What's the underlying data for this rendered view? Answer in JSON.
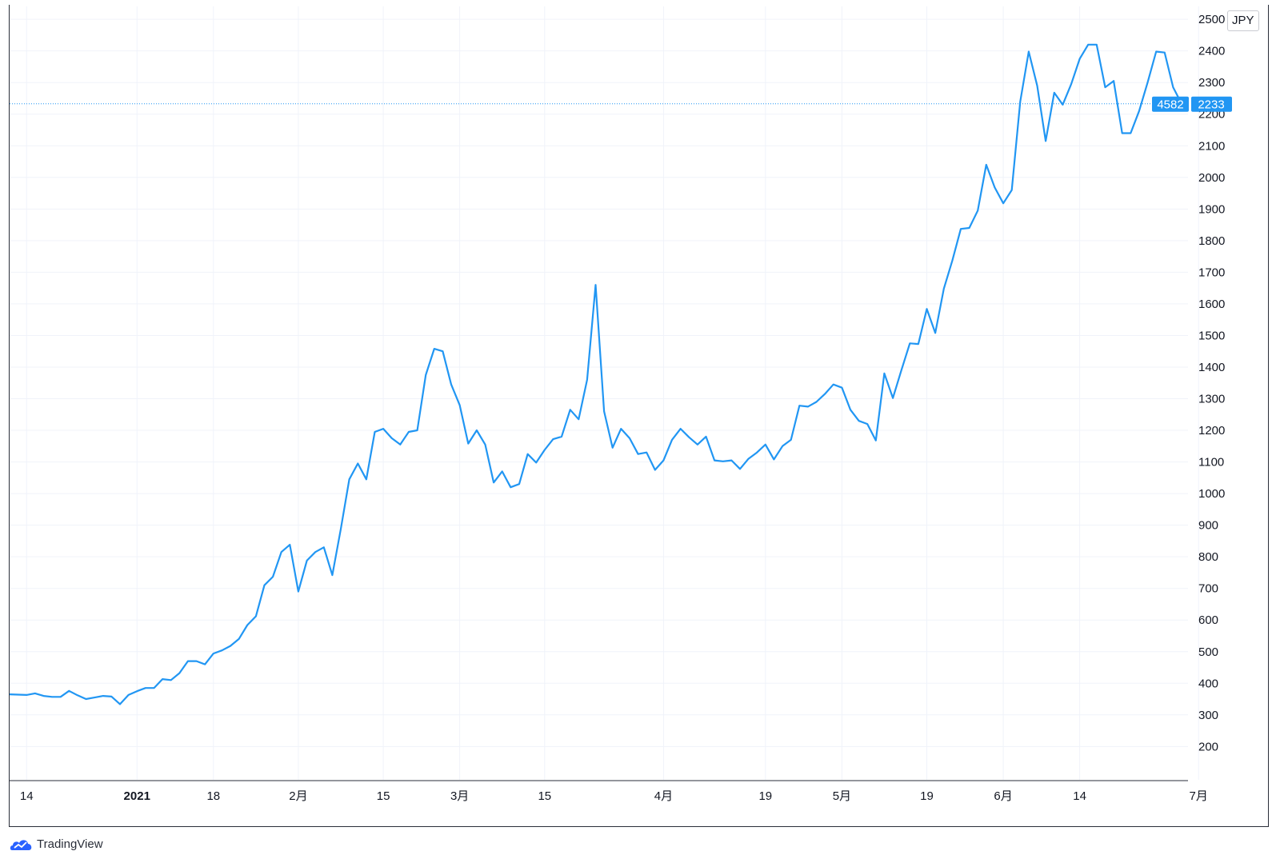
{
  "currency_label": "JPY",
  "brand": {
    "logo_icon": "tradingview-cloud-icon",
    "name": "TradingView"
  },
  "colors": {
    "line": "#2196f3",
    "grid": "#f0f3fa",
    "crosshair": "#2196f3",
    "label_bg": "#2196f3"
  },
  "price_label": {
    "symbol": "4582",
    "price": "2233"
  },
  "chart_data": {
    "type": "line",
    "title": "",
    "xlabel": "",
    "ylabel": "",
    "ylim": [
      200,
      2500
    ],
    "y_ticks": [
      200,
      300,
      400,
      500,
      600,
      700,
      800,
      900,
      1000,
      1100,
      1200,
      1300,
      1400,
      1500,
      1600,
      1700,
      1800,
      1900,
      2000,
      2100,
      2200,
      2300,
      2400,
      2500
    ],
    "last_value": 2233,
    "grid": true,
    "x_ticks": [
      {
        "label": "14",
        "index": 2,
        "bold": false
      },
      {
        "label": "2021",
        "index": 15,
        "bold": true
      },
      {
        "label": "18",
        "index": 24,
        "bold": false
      },
      {
        "label": "2月",
        "index": 34,
        "bold": false
      },
      {
        "label": "15",
        "index": 44,
        "bold": false
      },
      {
        "label": "3月",
        "index": 53,
        "bold": false
      },
      {
        "label": "15",
        "index": 63,
        "bold": false
      },
      {
        "label": "4月",
        "index": 77,
        "bold": false
      },
      {
        "label": "19",
        "index": 89,
        "bold": false
      },
      {
        "label": "5月",
        "index": 98,
        "bold": false
      },
      {
        "label": "19",
        "index": 108,
        "bold": false
      },
      {
        "label": "6月",
        "index": 117,
        "bold": false
      },
      {
        "label": "14",
        "index": 126,
        "bold": false
      },
      {
        "label": "7月",
        "index": 140,
        "bold": false
      }
    ],
    "series": [
      {
        "values": [
          365,
          364,
          363,
          368,
          360,
          357,
          357,
          376,
          362,
          350,
          355,
          360,
          358,
          334,
          363,
          375,
          385,
          385,
          413,
          410,
          432,
          470,
          470,
          460,
          494,
          504,
          518,
          540,
          584,
          612,
          710,
          737,
          815,
          838,
          690,
          788,
          815,
          830,
          742,
          888,
          1045,
          1095,
          1045,
          1195,
          1205,
          1175,
          1155,
          1195,
          1200,
          1375,
          1458,
          1450,
          1345,
          1280,
          1158,
          1200,
          1155,
          1035,
          1070,
          1020,
          1030,
          1125,
          1098,
          1138,
          1172,
          1180,
          1265,
          1235,
          1360,
          1660,
          1260,
          1145,
          1205,
          1175,
          1125,
          1130,
          1075,
          1105,
          1170,
          1205,
          1178,
          1155,
          1180,
          1105,
          1102,
          1105,
          1078,
          1110,
          1130,
          1155,
          1108,
          1150,
          1170,
          1278,
          1275,
          1290,
          1315,
          1345,
          1335,
          1265,
          1230,
          1220,
          1168,
          1380,
          1302,
          1390,
          1475,
          1473,
          1584,
          1508,
          1648,
          1737,
          1837,
          1840,
          1895,
          2040,
          1968,
          1918,
          1960,
          2240,
          2398,
          2290,
          2115,
          2268,
          2230,
          2295,
          2375,
          2420,
          2420,
          2285,
          2305,
          2140,
          2140,
          2210,
          2300,
          2398,
          2395,
          2285,
          2233
        ]
      }
    ]
  }
}
